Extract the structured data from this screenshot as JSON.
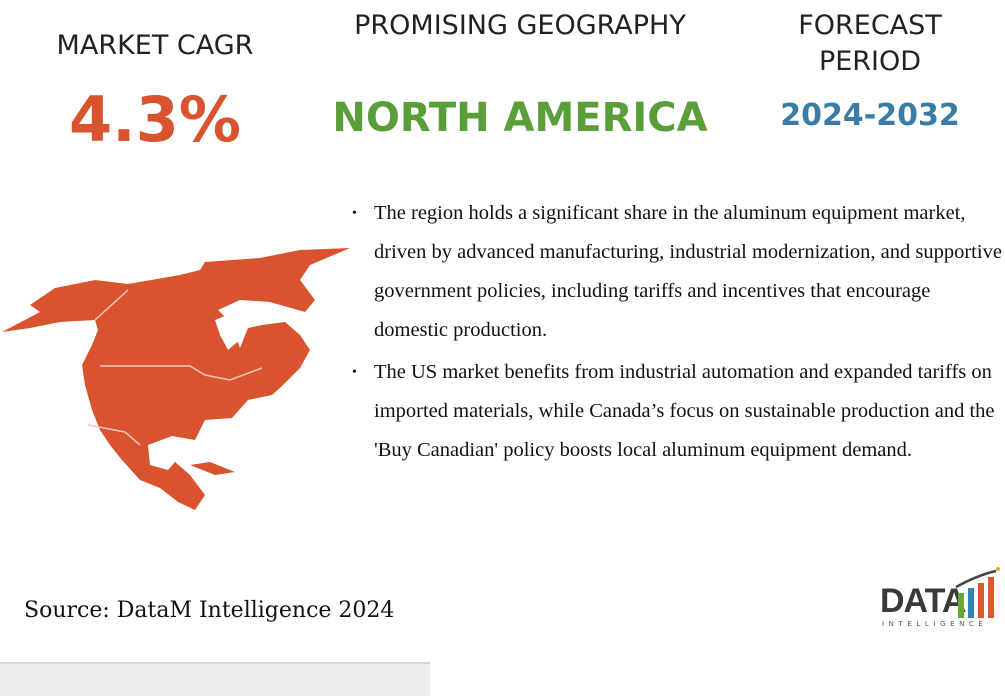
{
  "stats": {
    "cagr_label": "MARKET CAGR",
    "cagr_value": "4.3%",
    "geography_label": "PROMISING GEOGRAPHY",
    "geography_value": "NORTH AMERICA",
    "forecast_label": "FORECAST PERIOD",
    "forecast_value": "2024-2032"
  },
  "bullets": [
    "The region holds a significant share in the aluminum equipment market, driven by advanced manufacturing, industrial modernization, and supportive government policies, including tariffs and incentives that encourage domestic production.",
    "The US market benefits from industrial automation and expanded tariffs on imported materials, while Canada’s focus on sustainable production and the 'Buy Canadian' policy boosts local aluminum equipment demand."
  ],
  "source": "Source: DataM Intelligence 2024",
  "logo": {
    "text": "DATA",
    "subtext": "INTELLIGENCE"
  },
  "map_icon": "north-america-map",
  "colors": {
    "accent": "#d9532f",
    "geography": "#5a9e3a",
    "forecast": "#3a7ca5"
  }
}
